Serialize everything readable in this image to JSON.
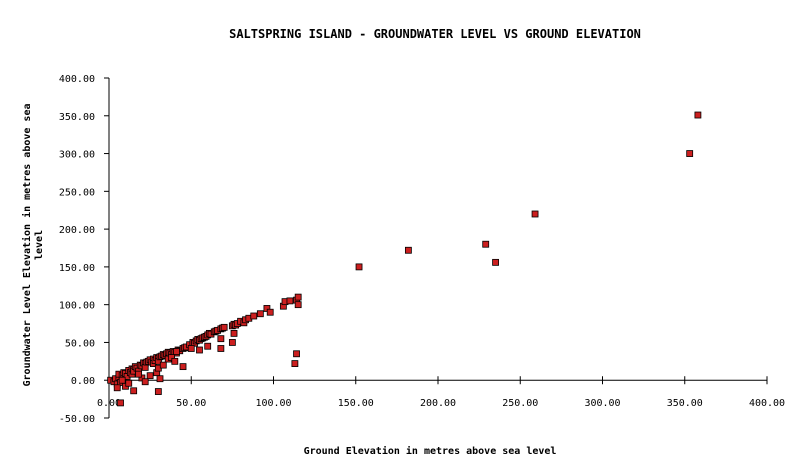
{
  "colors": {
    "background": "#ffffff",
    "axis": "#000000",
    "marker_fill": "#cc1f1f",
    "marker_stroke": "#000000"
  },
  "chart_data": {
    "type": "scatter",
    "title": "SALTSPRING ISLAND - GROUNDWATER LEVEL VS GROUND ELEVATION",
    "xlabel": "Ground Elevation in metres above sea level",
    "ylabel_lines": [
      "Groundwater Level Elevation in metres above sea",
      "level"
    ],
    "xlim": [
      0,
      400
    ],
    "ylim": [
      -50,
      400
    ],
    "grid": false,
    "legend": "none",
    "x_ticks": [
      "0.00",
      "50.00",
      "100.00",
      "150.00",
      "200.00",
      "250.00",
      "300.00",
      "350.00",
      "400.00"
    ],
    "y_ticks": [
      "-50.00",
      "0.00",
      "50.00",
      "100.00",
      "150.00",
      "200.00",
      "250.00",
      "300.00",
      "350.00",
      "400.00"
    ],
    "x": [
      1,
      3,
      4,
      5,
      6,
      6,
      7,
      8,
      9,
      9,
      10,
      11,
      12,
      13,
      14,
      14,
      15,
      15,
      16,
      17,
      18,
      19,
      20,
      21,
      22,
      22,
      23,
      24,
      25,
      26,
      27,
      27,
      28,
      29,
      30,
      30,
      31,
      32,
      33,
      34,
      35,
      36,
      37,
      38,
      39,
      40,
      41,
      42,
      43,
      45,
      46,
      47,
      49,
      51,
      52,
      53,
      54,
      55,
      56,
      57,
      58,
      59,
      60,
      61,
      62,
      64,
      65,
      66,
      68,
      69,
      70,
      75,
      76,
      77,
      78,
      80,
      82,
      83,
      85,
      88,
      92,
      96,
      98,
      106,
      107,
      110,
      114,
      115,
      115,
      7,
      10,
      15,
      20,
      22,
      25,
      29,
      30,
      31,
      33,
      36,
      38,
      45,
      50,
      55,
      60,
      68,
      68,
      75,
      76,
      113,
      114,
      152,
      182,
      229,
      235,
      259,
      353,
      358,
      5,
      8,
      12,
      18,
      30,
      40,
      41
    ],
    "y": [
      0,
      -2,
      2,
      -5,
      4,
      8,
      -3,
      6,
      3,
      10,
      9,
      5,
      13,
      10,
      15,
      8,
      14,
      12,
      18,
      16,
      12,
      20,
      19,
      23,
      22,
      17,
      24,
      25,
      27,
      24,
      28,
      22,
      26,
      30,
      29,
      25,
      31,
      32,
      34,
      33,
      35,
      37,
      36,
      34,
      38,
      37,
      36,
      40,
      39,
      42,
      43,
      44,
      47,
      50,
      49,
      52,
      54,
      53,
      55,
      56,
      57,
      58,
      60,
      62,
      61,
      64,
      65,
      66,
      68,
      69,
      70,
      72,
      74,
      73,
      75,
      78,
      76,
      80,
      82,
      85,
      88,
      95,
      90,
      98,
      104,
      105,
      106,
      100,
      110,
      -30,
      -8,
      -14,
      3,
      -2,
      6,
      10,
      16,
      2,
      20,
      28,
      30,
      18,
      42,
      40,
      45,
      55,
      42,
      50,
      62,
      22,
      35,
      150,
      172,
      180,
      156,
      220,
      300,
      351,
      -10,
      0,
      -4,
      8,
      -15,
      25,
      38
    ]
  }
}
